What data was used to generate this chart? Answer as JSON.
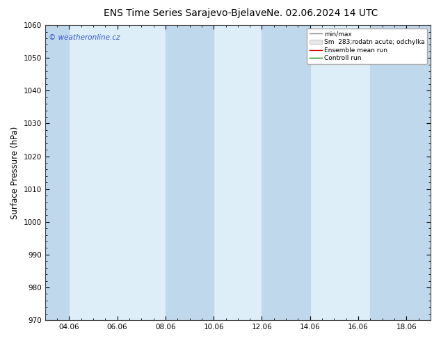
{
  "title": "ENS Time Series Sarajevo-Bjelave",
  "title2": "Ne. 02.06.2024 14 UTC",
  "ylabel": "Surface Pressure (hPa)",
  "ylim": [
    970,
    1060
  ],
  "yticks": [
    970,
    980,
    990,
    1000,
    1010,
    1020,
    1030,
    1040,
    1050,
    1060
  ],
  "x_labels": [
    "04.06",
    "06.06",
    "08.06",
    "10.06",
    "12.06",
    "14.06",
    "16.06",
    "18.06"
  ],
  "x_tick_positions": [
    1,
    3,
    5,
    7,
    9,
    11,
    13,
    15
  ],
  "xlim": [
    0,
    16
  ],
  "watermark": "© weatheronline.cz",
  "legend_labels": [
    "min/max",
    "Sm  283;rodatn acute; odchylka",
    "Ensemble mean run",
    "Controll run"
  ],
  "legend_colors": [
    "#888888",
    "#c8dcea",
    "#cc0000",
    "#008800"
  ],
  "shaded_bands": [
    {
      "x_start": 0.0,
      "x_end": 1.0
    },
    {
      "x_start": 5.0,
      "x_end": 7.0
    },
    {
      "x_start": 9.0,
      "x_end": 11.0
    },
    {
      "x_start": 13.5,
      "x_end": 16.0
    }
  ],
  "background_color": "#ffffff",
  "plot_bg_color": "#ddeef8",
  "band_color": "#c0d8ec",
  "title_fontsize": 10,
  "tick_fontsize": 7.5,
  "ylabel_fontsize": 8.5,
  "watermark_color": "#3355cc",
  "spine_color": "#444444"
}
